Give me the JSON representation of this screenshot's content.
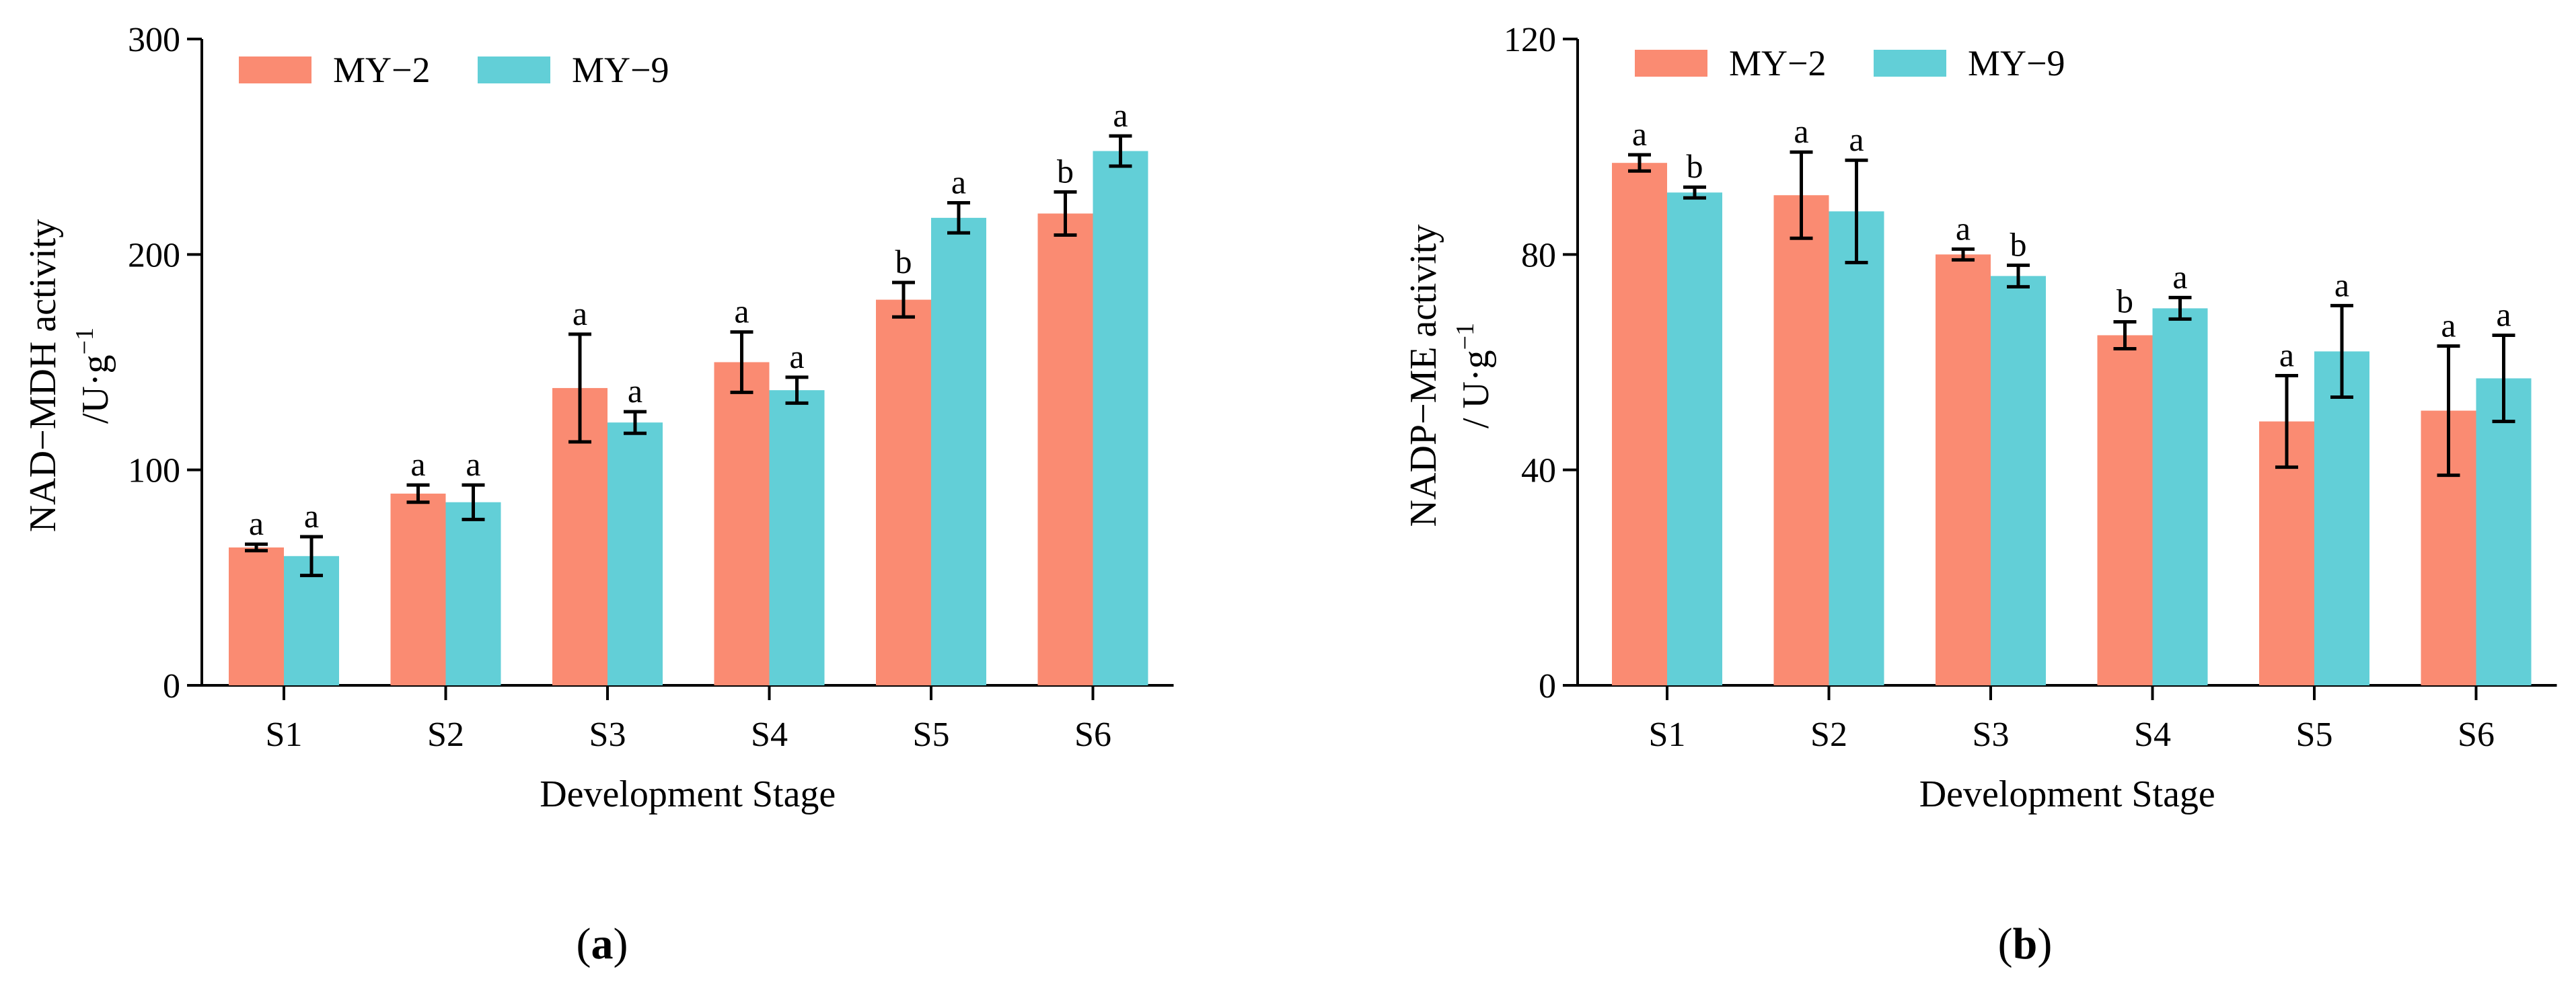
{
  "colors": {
    "my2": "#FA8B72",
    "my9": "#62CFD7"
  },
  "chart_data": [
    {
      "type": "bar",
      "panel_label": "a",
      "title": "",
      "xlabel": "Development Stage",
      "ylabel": "NAD−MDH activity",
      "ylabel_unit_prefix": "/U·g",
      "ylabel_unit_sup": "−1",
      "ylim": [
        0,
        300
      ],
      "yticks": [
        "0",
        "100",
        "200",
        "300"
      ],
      "categories": [
        "S1",
        "S2",
        "S3",
        "S4",
        "S5",
        "S6"
      ],
      "legend": {
        "placement": "top-left",
        "entries": [
          "MY−2",
          "MY−9"
        ]
      },
      "series": [
        {
          "name": "MY−2",
          "values": [
            64,
            89,
            138,
            150,
            179,
            219
          ],
          "errors": [
            1.5,
            4,
            25,
            14,
            8,
            10
          ],
          "labels": [
            "a",
            "a",
            "a",
            "a",
            "b",
            "b"
          ]
        },
        {
          "name": "MY−9",
          "values": [
            60,
            85,
            122,
            137,
            217,
            248
          ],
          "errors": [
            9,
            8,
            5,
            6,
            7,
            7
          ],
          "labels": [
            "a",
            "a",
            "a",
            "a",
            "a",
            "a"
          ]
        }
      ]
    },
    {
      "type": "bar",
      "panel_label": "b",
      "title": "",
      "xlabel": "Development Stage",
      "ylabel": "NADP−ME activity",
      "ylabel_unit_prefix": "/ U·g",
      "ylabel_unit_sup": "−1",
      "ylim": [
        0,
        120
      ],
      "yticks": [
        "0",
        "40",
        "80",
        "120"
      ],
      "categories": [
        "S1",
        "S2",
        "S3",
        "S4",
        "S5",
        "S6"
      ],
      "legend": {
        "placement": "top-left",
        "entries": [
          "MY−2",
          "MY−9"
        ]
      },
      "series": [
        {
          "name": "MY−2",
          "values": [
            97,
            91,
            80,
            65,
            49,
            51
          ],
          "errors": [
            1.5,
            8,
            1,
            2.5,
            8.5,
            12
          ],
          "labels": [
            "a",
            "a",
            "a",
            "b",
            "a",
            "a"
          ]
        },
        {
          "name": "MY−9",
          "values": [
            91.5,
            88,
            76,
            70,
            62,
            57
          ],
          "errors": [
            1,
            9.5,
            2,
            2,
            8.5,
            8
          ],
          "labels": [
            "b",
            "a",
            "b",
            "a",
            "a",
            "a"
          ]
        }
      ]
    }
  ]
}
